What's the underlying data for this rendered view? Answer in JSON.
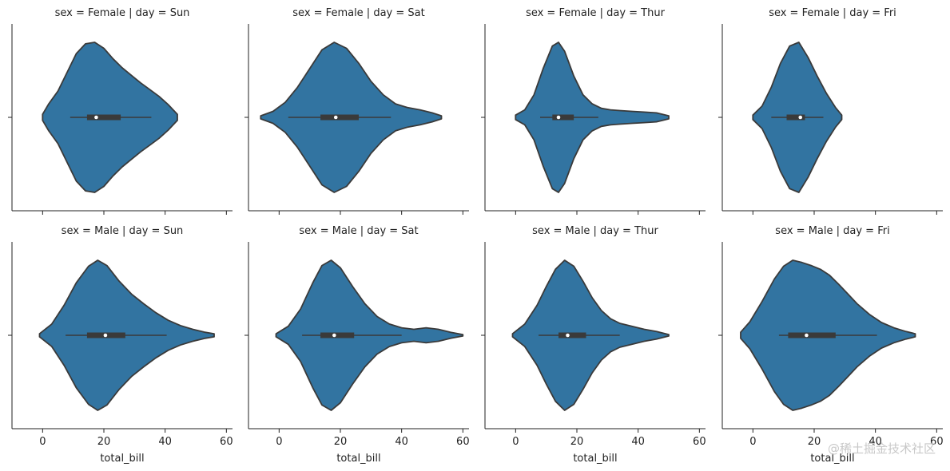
{
  "chart_data": {
    "type": "violin",
    "xlabel": "total_bill",
    "xticks": [
      0,
      20,
      40,
      60
    ],
    "xlim": [
      -10,
      62
    ],
    "color": "#3274a1",
    "edge_color": "#3a3a3a",
    "panels": [
      {
        "title": "sex = Female | day = Sun",
        "row": 0,
        "col": 0,
        "min": 0,
        "max": 44,
        "q1": 14.5,
        "median": 17.5,
        "q3": 25.5,
        "whisker_low": 9,
        "whisker_high": 35.5,
        "density": [
          [
            0,
            0.04
          ],
          [
            2,
            0.18
          ],
          [
            5,
            0.35
          ],
          [
            8,
            0.6
          ],
          [
            11,
            0.85
          ],
          [
            14,
            0.98
          ],
          [
            17,
            1.0
          ],
          [
            20,
            0.92
          ],
          [
            23,
            0.78
          ],
          [
            26,
            0.66
          ],
          [
            29,
            0.56
          ],
          [
            32,
            0.46
          ],
          [
            35,
            0.37
          ],
          [
            38,
            0.28
          ],
          [
            41,
            0.17
          ],
          [
            44,
            0.04
          ]
        ]
      },
      {
        "title": "sex = Female | day = Sat",
        "row": 0,
        "col": 1,
        "min": -6,
        "max": 53,
        "q1": 13.5,
        "median": 18.5,
        "q3": 26,
        "whisker_low": 3,
        "whisker_high": 36.5,
        "density": [
          [
            -6,
            0.02
          ],
          [
            -2,
            0.08
          ],
          [
            2,
            0.2
          ],
          [
            6,
            0.4
          ],
          [
            10,
            0.65
          ],
          [
            14,
            0.9
          ],
          [
            18,
            1.0
          ],
          [
            22,
            0.92
          ],
          [
            26,
            0.72
          ],
          [
            30,
            0.48
          ],
          [
            34,
            0.3
          ],
          [
            38,
            0.18
          ],
          [
            42,
            0.13
          ],
          [
            46,
            0.1
          ],
          [
            50,
            0.06
          ],
          [
            53,
            0.02
          ]
        ]
      },
      {
        "title": "sex = Female | day = Thur",
        "row": 0,
        "col": 2,
        "min": 0,
        "max": 51,
        "q1": 12,
        "median": 14,
        "q3": 19,
        "whisker_low": 8,
        "whisker_high": 27,
        "density": [
          [
            0,
            0.03
          ],
          [
            3,
            0.1
          ],
          [
            6,
            0.3
          ],
          [
            9,
            0.65
          ],
          [
            12,
            0.95
          ],
          [
            14,
            1.0
          ],
          [
            16,
            0.88
          ],
          [
            19,
            0.55
          ],
          [
            22,
            0.3
          ],
          [
            25,
            0.18
          ],
          [
            28,
            0.12
          ],
          [
            31,
            0.1
          ],
          [
            34,
            0.09
          ],
          [
            38,
            0.08
          ],
          [
            42,
            0.07
          ],
          [
            46,
            0.06
          ],
          [
            50,
            0.02
          ]
        ]
      },
      {
        "title": "sex = Female | day = Fri",
        "row": 0,
        "col": 3,
        "min": 0,
        "max": 29,
        "q1": 11,
        "median": 15.5,
        "q3": 17,
        "whisker_low": 6,
        "whisker_high": 23,
        "density": [
          [
            0,
            0.03
          ],
          [
            3,
            0.15
          ],
          [
            6,
            0.4
          ],
          [
            9,
            0.72
          ],
          [
            12,
            0.95
          ],
          [
            15,
            1.0
          ],
          [
            18,
            0.8
          ],
          [
            21,
            0.55
          ],
          [
            24,
            0.32
          ],
          [
            27,
            0.13
          ],
          [
            29,
            0.03
          ]
        ]
      },
      {
        "title": "sex = Male | day = Sun",
        "row": 1,
        "col": 0,
        "min": -1,
        "max": 56,
        "q1": 14.5,
        "median": 20.5,
        "q3": 27,
        "whisker_low": 7.5,
        "whisker_high": 40.5,
        "density": [
          [
            -1,
            0.02
          ],
          [
            3,
            0.15
          ],
          [
            7,
            0.4
          ],
          [
            11,
            0.7
          ],
          [
            15,
            0.92
          ],
          [
            18,
            1.0
          ],
          [
            21,
            0.93
          ],
          [
            25,
            0.72
          ],
          [
            29,
            0.55
          ],
          [
            33,
            0.42
          ],
          [
            37,
            0.3
          ],
          [
            41,
            0.2
          ],
          [
            45,
            0.13
          ],
          [
            49,
            0.08
          ],
          [
            53,
            0.04
          ],
          [
            56,
            0.02
          ]
        ]
      },
      {
        "title": "sex = Male | day = Sat",
        "row": 1,
        "col": 1,
        "min": -1,
        "max": 60,
        "q1": 13.5,
        "median": 18,
        "q3": 24.5,
        "whisker_low": 7.5,
        "whisker_high": 40,
        "density": [
          [
            -1,
            0.02
          ],
          [
            3,
            0.12
          ],
          [
            7,
            0.35
          ],
          [
            11,
            0.7
          ],
          [
            14,
            0.93
          ],
          [
            17,
            1.0
          ],
          [
            20,
            0.9
          ],
          [
            24,
            0.65
          ],
          [
            28,
            0.42
          ],
          [
            32,
            0.25
          ],
          [
            36,
            0.15
          ],
          [
            40,
            0.1
          ],
          [
            44,
            0.08
          ],
          [
            48,
            0.1
          ],
          [
            52,
            0.08
          ],
          [
            56,
            0.04
          ],
          [
            60,
            0.01
          ]
        ]
      },
      {
        "title": "sex = Male | day = Thur",
        "row": 1,
        "col": 2,
        "min": -1,
        "max": 50,
        "q1": 14,
        "median": 17,
        "q3": 23,
        "whisker_low": 7.5,
        "whisker_high": 34,
        "density": [
          [
            -1,
            0.02
          ],
          [
            3,
            0.15
          ],
          [
            7,
            0.4
          ],
          [
            10,
            0.65
          ],
          [
            13,
            0.88
          ],
          [
            16,
            1.0
          ],
          [
            19,
            0.92
          ],
          [
            22,
            0.72
          ],
          [
            25,
            0.5
          ],
          [
            28,
            0.33
          ],
          [
            31,
            0.22
          ],
          [
            34,
            0.16
          ],
          [
            38,
            0.12
          ],
          [
            42,
            0.08
          ],
          [
            46,
            0.05
          ],
          [
            50,
            0.01
          ]
        ]
      },
      {
        "title": "sex = Male | day = Fri",
        "row": 1,
        "col": 3,
        "min": -4,
        "max": 53,
        "q1": 11.5,
        "median": 17.5,
        "q3": 27,
        "whisker_low": 8.5,
        "whisker_high": 40.5,
        "density": [
          [
            -4,
            0.04
          ],
          [
            -1,
            0.18
          ],
          [
            3,
            0.45
          ],
          [
            7,
            0.75
          ],
          [
            10,
            0.92
          ],
          [
            13,
            1.0
          ],
          [
            16,
            0.97
          ],
          [
            19,
            0.93
          ],
          [
            22,
            0.88
          ],
          [
            25,
            0.8
          ],
          [
            28,
            0.68
          ],
          [
            31,
            0.55
          ],
          [
            34,
            0.42
          ],
          [
            38,
            0.28
          ],
          [
            42,
            0.17
          ],
          [
            46,
            0.1
          ],
          [
            50,
            0.05
          ],
          [
            53,
            0.02
          ]
        ]
      }
    ]
  },
  "watermark": "@稀土掘金技术社区"
}
